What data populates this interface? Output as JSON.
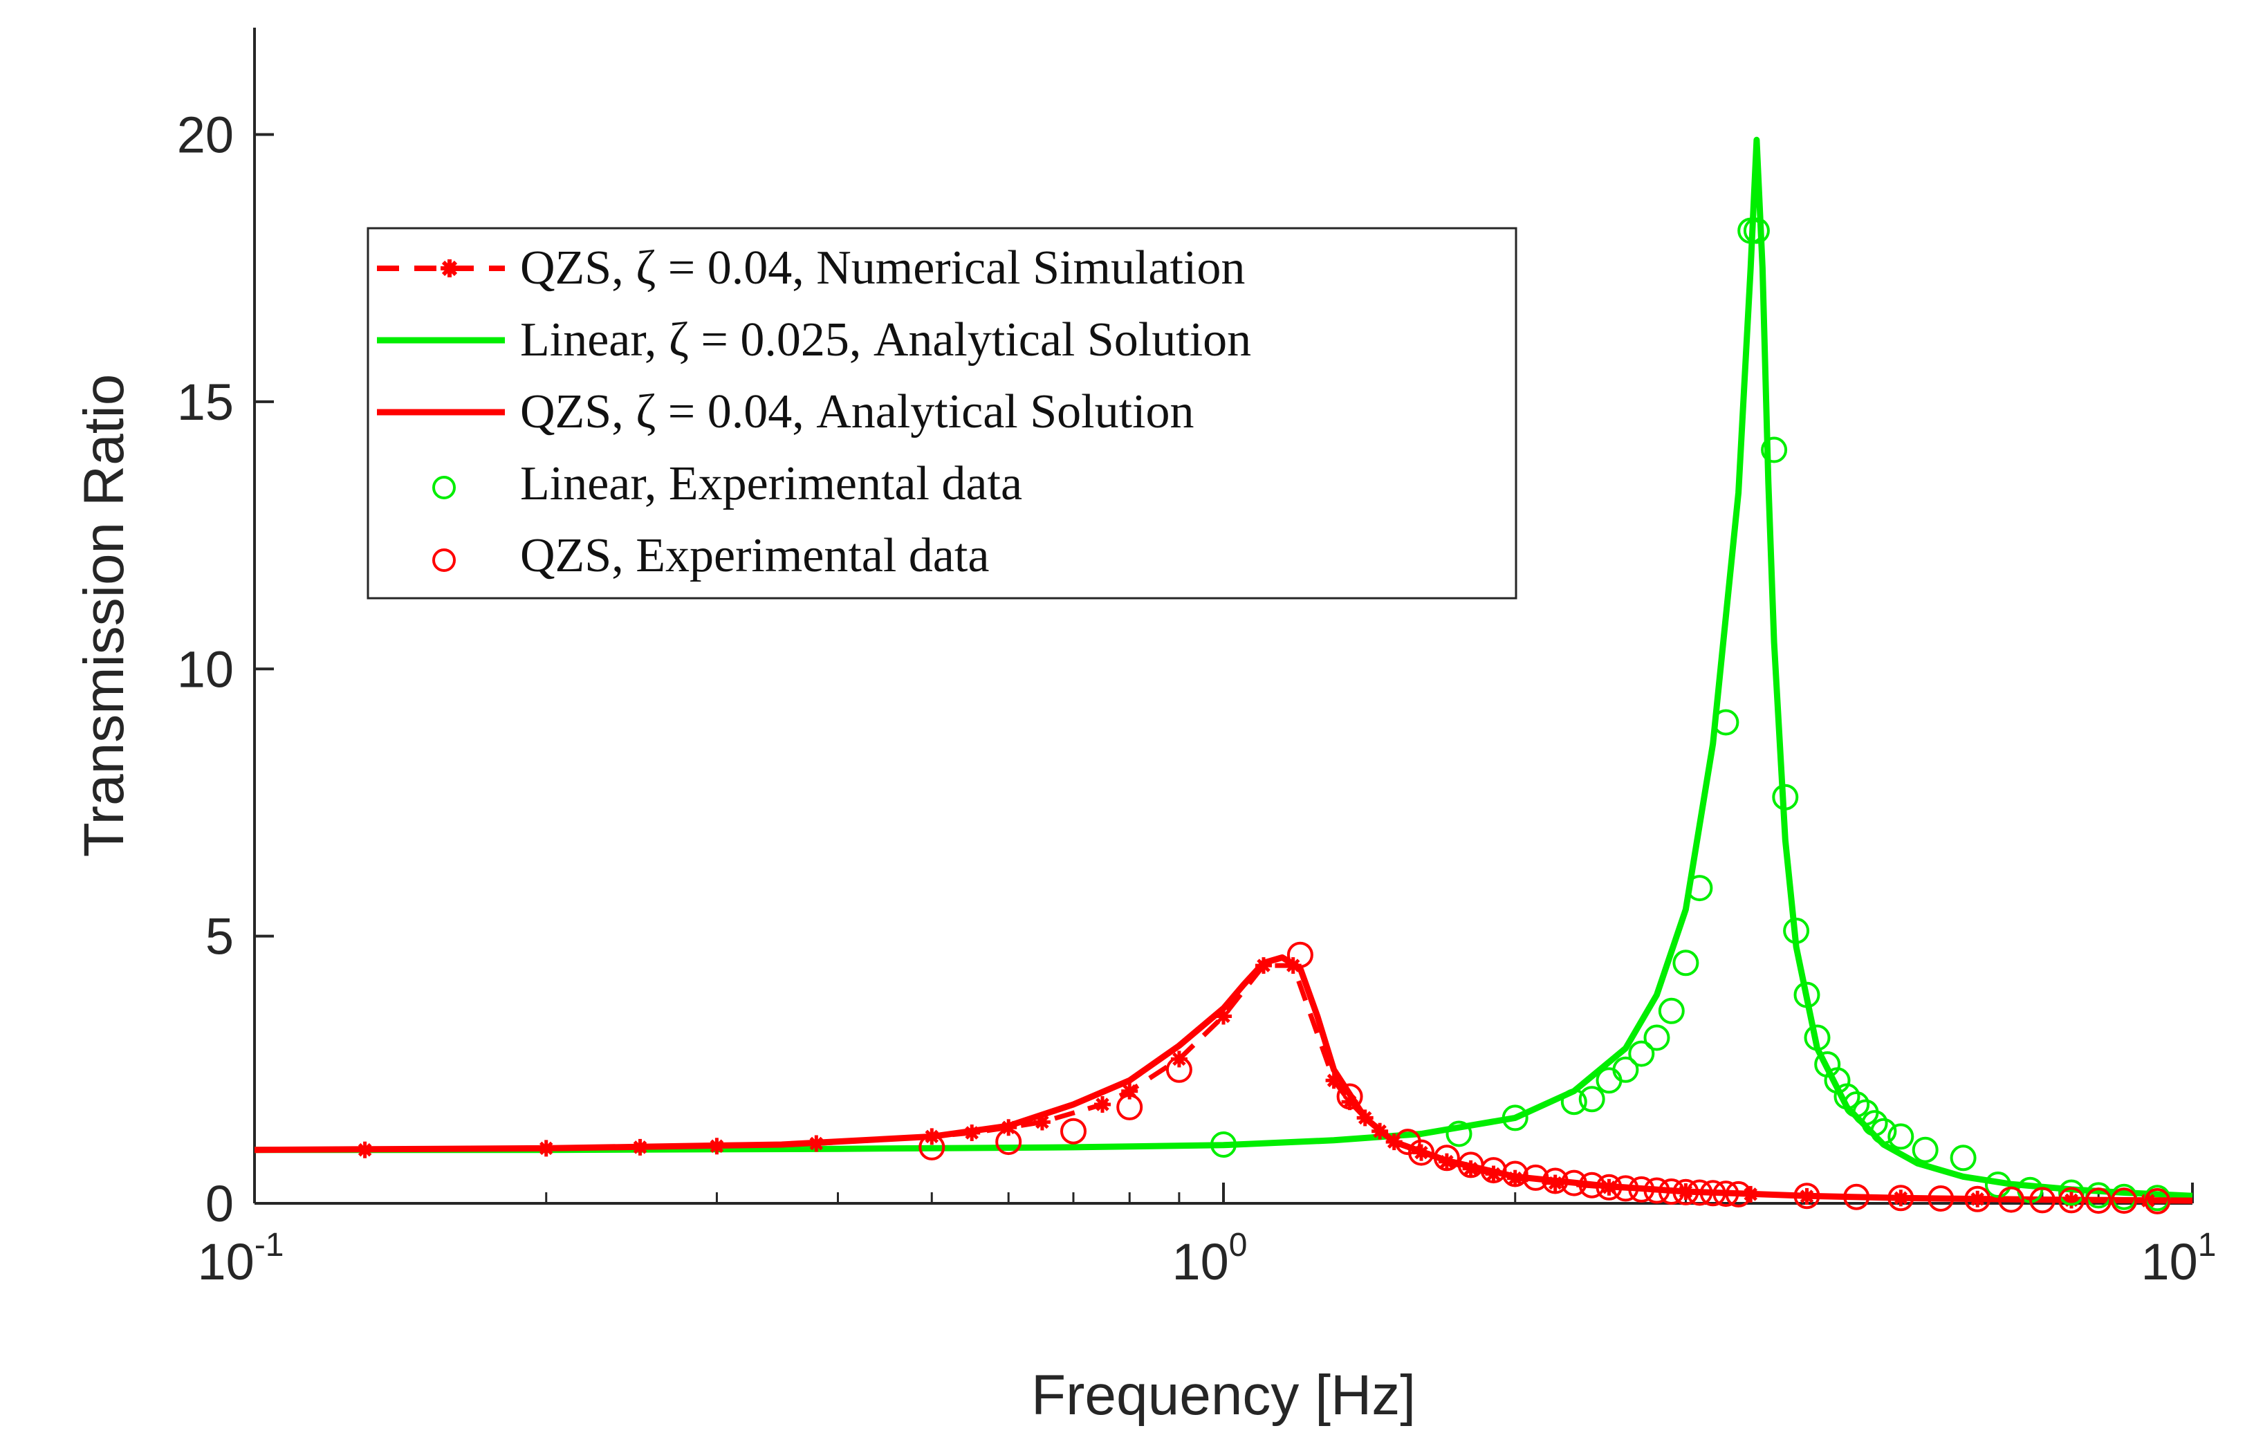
{
  "chart_data": {
    "type": "line",
    "xscale": "log",
    "xlim": [
      0.1,
      10
    ],
    "ylim": [
      0,
      22
    ],
    "xlabel": "Frequency [Hz]",
    "ylabel": "Transmission Ratio",
    "xticks": [
      {
        "value": 0.1,
        "base": "10",
        "exp": "-1"
      },
      {
        "value": 1,
        "base": "10",
        "exp": "0"
      },
      {
        "value": 10,
        "base": "10",
        "exp": "1"
      }
    ],
    "yticks": [
      0,
      5,
      10,
      15,
      20
    ],
    "colors": {
      "red": "#ff0000",
      "green": "#00ee00",
      "axis": "#262626"
    },
    "legend": {
      "position": "upper-left",
      "entries": [
        {
          "id": "qzs-numerical",
          "label": "QZS, ζ = 0.04, Numerical Simulation"
        },
        {
          "id": "linear-analytical",
          "label": "Linear, ζ = 0.025, Analytical Solution"
        },
        {
          "id": "qzs-analytical",
          "label": "QZS, ζ = 0.04, Analytical Solution"
        },
        {
          "id": "linear-experimental",
          "label": "Linear, Experimental data"
        },
        {
          "id": "qzs-experimental",
          "label": "QZS, Experimental data"
        }
      ]
    },
    "series": [
      {
        "id": "linear-analytical",
        "name": "Linear, ζ = 0.025, Analytical Solution",
        "kind": "line",
        "color": "#00ee00",
        "x": [
          0.1,
          0.2,
          0.4,
          0.7,
          1.0,
          1.3,
          1.6,
          2.0,
          2.3,
          2.6,
          2.8,
          3.0,
          3.2,
          3.4,
          3.5,
          3.55,
          3.6,
          3.65,
          3.7,
          3.8,
          3.9,
          4.1,
          4.4,
          4.8,
          5.2,
          5.8,
          6.5,
          7.5,
          8.5,
          10
        ],
        "y": [
          1.0,
          1.0,
          1.02,
          1.05,
          1.09,
          1.18,
          1.3,
          1.6,
          2.1,
          2.9,
          3.9,
          5.5,
          8.6,
          13.3,
          17.5,
          19.9,
          17.5,
          13.5,
          10.5,
          6.8,
          4.8,
          2.9,
          1.8,
          1.1,
          0.75,
          0.5,
          0.36,
          0.26,
          0.2,
          0.14
        ]
      },
      {
        "id": "qzs-analytical",
        "name": "QZS, ζ = 0.04, Analytical Solution",
        "kind": "line",
        "color": "#ff0000",
        "x": [
          0.1,
          0.2,
          0.35,
          0.5,
          0.6,
          0.7,
          0.8,
          0.9,
          1.0,
          1.05,
          1.1,
          1.15,
          1.2,
          1.25,
          1.3,
          1.4,
          1.5,
          1.7,
          2.0,
          2.5,
          3.0,
          4.0,
          5.0,
          7.0,
          10
        ],
        "y": [
          1.0,
          1.03,
          1.1,
          1.25,
          1.45,
          1.85,
          2.3,
          2.95,
          3.65,
          4.1,
          4.5,
          4.6,
          4.4,
          3.5,
          2.5,
          1.6,
          1.15,
          0.8,
          0.5,
          0.32,
          0.22,
          0.14,
          0.1,
          0.07,
          0.05
        ]
      },
      {
        "id": "qzs-numerical",
        "name": "QZS, ζ = 0.04, Numerical Simulation",
        "kind": "dashed-markers",
        "color": "#ff0000",
        "x": [
          0.13,
          0.2,
          0.25,
          0.3,
          0.38,
          0.5,
          0.55,
          0.6,
          0.65,
          0.75,
          0.8,
          0.9,
          1.0,
          1.1,
          1.18,
          1.3,
          1.35,
          1.4,
          1.45,
          1.5,
          1.6,
          1.7,
          1.8,
          1.9,
          2.0,
          2.2,
          2.5,
          3.0,
          3.5,
          4.0,
          5.0,
          6.0,
          7.5,
          9.0
        ],
        "y": [
          1.0,
          1.03,
          1.05,
          1.07,
          1.12,
          1.25,
          1.32,
          1.42,
          1.52,
          1.85,
          2.1,
          2.7,
          3.5,
          4.45,
          4.45,
          2.3,
          1.9,
          1.6,
          1.35,
          1.15,
          0.95,
          0.78,
          0.65,
          0.55,
          0.47,
          0.38,
          0.3,
          0.22,
          0.17,
          0.13,
          0.1,
          0.08,
          0.06,
          0.05
        ]
      },
      {
        "id": "linear-experimental",
        "name": "Linear, Experimental data",
        "kind": "markers",
        "color": "#00ee00",
        "x": [
          1.0,
          1.75,
          2.0,
          2.3,
          2.4,
          2.5,
          2.6,
          2.7,
          2.8,
          2.9,
          3.0,
          3.1,
          3.3,
          3.5,
          3.55,
          3.7,
          3.8,
          3.9,
          4.0,
          4.1,
          4.2,
          4.3,
          4.4,
          4.5,
          4.6,
          4.7,
          4.8,
          5.0,
          5.3,
          5.8,
          6.3,
          6.8,
          7.5,
          8.0,
          8.5,
          9.2
        ],
        "y": [
          1.1,
          1.3,
          1.6,
          1.9,
          1.95,
          2.3,
          2.5,
          2.8,
          3.1,
          3.6,
          4.5,
          5.9,
          9.0,
          18.2,
          18.2,
          14.1,
          7.6,
          5.1,
          3.9,
          3.1,
          2.6,
          2.3,
          2.0,
          1.85,
          1.7,
          1.5,
          1.35,
          1.25,
          1.0,
          0.85,
          0.35,
          0.25,
          0.2,
          0.15,
          0.12,
          0.1
        ]
      },
      {
        "id": "qzs-experimental",
        "name": "QZS, Experimental data",
        "kind": "markers",
        "color": "#ff0000",
        "x": [
          0.5,
          0.6,
          0.7,
          0.8,
          0.9,
          1.2,
          1.35,
          1.55,
          1.6,
          1.7,
          1.8,
          1.9,
          2.0,
          2.1,
          2.2,
          2.3,
          2.4,
          2.5,
          2.6,
          2.7,
          2.8,
          2.9,
          3.0,
          3.1,
          3.2,
          3.3,
          3.4,
          4.0,
          4.5,
          5.0,
          5.5,
          6.0,
          6.5,
          7.0,
          7.5,
          8.0,
          8.5,
          9.2
        ],
        "y": [
          1.05,
          1.15,
          1.35,
          1.8,
          2.5,
          4.65,
          2.0,
          1.15,
          0.95,
          0.85,
          0.72,
          0.62,
          0.55,
          0.48,
          0.42,
          0.38,
          0.34,
          0.3,
          0.28,
          0.26,
          0.24,
          0.22,
          0.21,
          0.2,
          0.19,
          0.18,
          0.17,
          0.14,
          0.12,
          0.1,
          0.09,
          0.08,
          0.07,
          0.06,
          0.06,
          0.05,
          0.05,
          0.04
        ]
      }
    ]
  }
}
